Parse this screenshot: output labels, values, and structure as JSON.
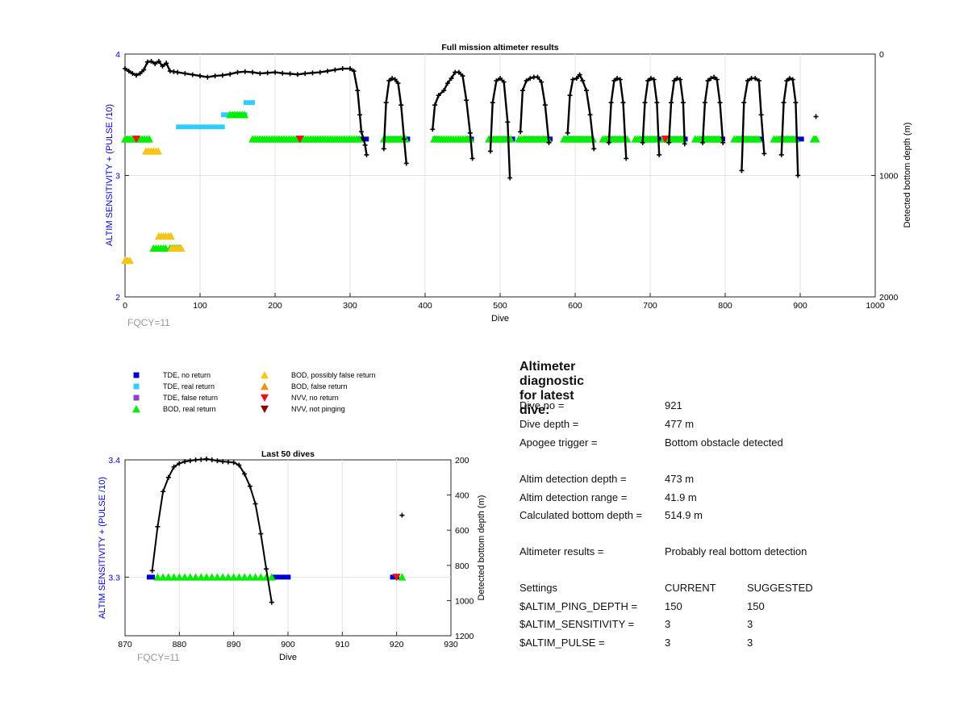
{
  "chart_data": [
    {
      "type": "scatter",
      "title": "Full mission altimeter results",
      "xlabel": "Dive",
      "ylabel": "ALTIM SENSITIVITY + (PULSE /10)",
      "y2label": "Detected bottom depth (m)",
      "xlim": [
        0,
        1000
      ],
      "ylim": [
        2,
        4
      ],
      "y2lim": [
        2000,
        0
      ],
      "y2reversed": true,
      "grid": true,
      "note": "FQCY=11",
      "xticks": [
        "0",
        "100",
        "200",
        "300",
        "400",
        "500",
        "600",
        "700",
        "800",
        "900",
        "1000"
      ],
      "yticks": [
        "2",
        "3",
        "4"
      ],
      "y2ticks": [
        "0",
        "1000",
        "2000"
      ],
      "segments": [
        {
          "series": "TDE, no return",
          "y": 3.3,
          "x": [
            [
              0,
              5
            ],
            [
              310,
              325
            ],
            [
              345,
              380
            ],
            [
              410,
              420
            ],
            [
              455,
              465
            ],
            [
              490,
              520
            ],
            [
              530,
              570
            ],
            [
              585,
              625
            ],
            [
              640,
              670
            ],
            [
              685,
              715
            ],
            [
              725,
              750
            ],
            [
              765,
              800
            ],
            [
              815,
              850
            ],
            [
              870,
              905
            ],
            [
              918,
              922
            ]
          ]
        },
        {
          "series": "TDE, real return",
          "y": 3.4,
          "x": [
            [
              68,
              133
            ]
          ]
        },
        {
          "series": "TDE, real return",
          "y": 3.5,
          "x": [
            [
              128,
              163
            ]
          ]
        },
        {
          "series": "TDE, real return",
          "y": 3.6,
          "x": [
            [
              158,
              173
            ]
          ]
        },
        {
          "series": "TDE, no return",
          "y": 2.3,
          "x": [
            [
              0,
              3
            ]
          ]
        }
      ],
      "markers": [
        {
          "series": "BOD, real return",
          "y": 3.3,
          "x": [
            [
              0,
              33
            ],
            [
              170,
              312
            ],
            [
              345,
              375
            ],
            [
              412,
              462
            ],
            [
              485,
              515
            ],
            [
              525,
              565
            ],
            [
              585,
              625
            ],
            [
              637,
              670
            ],
            [
              680,
              710
            ],
            [
              718,
              745
            ],
            [
              760,
              795
            ],
            [
              812,
              845
            ],
            [
              865,
              895
            ],
            [
              918,
              924
            ]
          ]
        },
        {
          "series": "BOD, real return",
          "y": 2.4,
          "x": [
            [
              38,
              55
            ],
            [
              60,
              73
            ]
          ]
        },
        {
          "series": "BOD, real return",
          "y": 3.5,
          "x": [
            [
              140,
              160
            ]
          ]
        },
        {
          "series": "BOD, possibly false return",
          "y": 3.2,
          "x": [
            [
              28,
              45
            ]
          ]
        },
        {
          "series": "BOD, possibly false return",
          "y": 2.5,
          "x": [
            [
              45,
              62
            ]
          ]
        },
        {
          "series": "BOD, possibly false return",
          "y": 2.4,
          "x": [
            [
              62,
              75
            ]
          ]
        },
        {
          "series": "BOD, possibly false return",
          "y": 2.3,
          "x": [
            [
              0,
              8
            ]
          ]
        },
        {
          "series": "NVV, no return",
          "y": 3.3,
          "x": [
            [
              15,
              18
            ],
            [
              233,
              236
            ],
            [
              720,
              723
            ]
          ]
        }
      ],
      "depth_series": [
        {
          "x": [
            0,
            5,
            10,
            15,
            20,
            25,
            30,
            35,
            40,
            45,
            50,
            55,
            60,
            65,
            70,
            80,
            90,
            100,
            110,
            120,
            130,
            140,
            150,
            160,
            170,
            180,
            190,
            200,
            210,
            220,
            230,
            240,
            250,
            260,
            270,
            280,
            290,
            300,
            305,
            310,
            313,
            315,
            318,
            320,
            322
          ],
          "y": [
            120,
            140,
            160,
            175,
            160,
            130,
            65,
            60,
            80,
            60,
            100,
            75,
            140,
            145,
            150,
            160,
            170,
            180,
            190,
            180,
            175,
            165,
            150,
            145,
            150,
            160,
            155,
            150,
            158,
            162,
            168,
            160,
            155,
            150,
            140,
            130,
            120,
            120,
            140,
            300,
            500,
            640,
            700,
            750,
            830
          ]
        },
        {
          "x": [
            345,
            348,
            352,
            356,
            360,
            364,
            368,
            372,
            375
          ],
          "y": [
            780,
            400,
            220,
            200,
            210,
            240,
            420,
            700,
            900
          ]
        },
        {
          "x": [
            410,
            413,
            418,
            425,
            430,
            435,
            440,
            445,
            450,
            455,
            460,
            463
          ],
          "y": [
            620,
            420,
            340,
            300,
            240,
            200,
            150,
            150,
            180,
            380,
            650,
            860
          ]
        },
        {
          "x": [
            487,
            490,
            495,
            500,
            505,
            510,
            513
          ],
          "y": [
            800,
            400,
            220,
            200,
            230,
            560,
            1020
          ]
        },
        {
          "x": [
            527,
            530,
            535,
            540,
            545,
            550,
            555,
            560,
            565
          ],
          "y": [
            640,
            300,
            220,
            200,
            190,
            190,
            230,
            420,
            730
          ]
        },
        {
          "x": [
            590,
            593,
            597,
            602,
            606,
            610,
            615,
            620,
            625
          ],
          "y": [
            650,
            340,
            210,
            200,
            170,
            220,
            300,
            500,
            780
          ]
        },
        {
          "x": [
            645,
            648,
            652,
            656,
            660,
            664,
            668
          ],
          "y": [
            730,
            400,
            220,
            200,
            210,
            400,
            860
          ]
        },
        {
          "x": [
            690,
            693,
            697,
            701,
            705,
            709,
            712
          ],
          "y": [
            730,
            400,
            220,
            200,
            210,
            400,
            830
          ]
        },
        {
          "x": [
            725,
            728,
            732,
            736,
            740,
            744,
            746
          ],
          "y": [
            730,
            400,
            220,
            200,
            210,
            400,
            740
          ]
        },
        {
          "x": [
            770,
            773,
            777,
            781,
            785,
            789,
            793,
            797
          ],
          "y": [
            730,
            400,
            220,
            200,
            190,
            210,
            400,
            730
          ]
        },
        {
          "x": [
            822,
            825,
            830,
            835,
            840,
            845,
            848,
            852
          ],
          "y": [
            960,
            400,
            220,
            200,
            200,
            220,
            500,
            820
          ]
        },
        {
          "x": [
            875,
            878,
            882,
            886,
            890,
            894,
            897
          ],
          "y": [
            830,
            400,
            220,
            200,
            210,
            400,
            1000
          ]
        },
        {
          "x": [
            921
          ],
          "y": [
            514.9
          ]
        }
      ]
    },
    {
      "type": "scatter",
      "title": "Last 50 dives",
      "xlabel": "Dive",
      "ylabel": "ALTIM SENSITIVITY + (PULSE /10)",
      "y2label": "Detected bottom depth (m)",
      "xlim": [
        870,
        930
      ],
      "ylim": [
        3.25,
        3.4
      ],
      "y2lim": [
        1200,
        200
      ],
      "y2reversed": true,
      "grid": true,
      "note": "FQCY=11",
      "xticks": [
        "870",
        "880",
        "890",
        "900",
        "910",
        "920",
        "930"
      ],
      "yticks": [
        "3.3",
        "3.4"
      ],
      "y2ticks": [
        "200",
        "400",
        "600",
        "800",
        "1000",
        "1200"
      ],
      "segments": [
        {
          "series": "TDE, no return",
          "y": 3.3,
          "x": [
            [
              874,
              875.5
            ],
            [
              897,
              900.5
            ],
            [
              918.8,
              920.5
            ]
          ]
        }
      ],
      "markers": [
        {
          "series": "BOD, real return",
          "y": 3.3,
          "x": [
            876,
            877,
            878,
            879,
            880,
            881,
            882,
            883,
            884,
            885,
            886,
            887,
            888,
            889,
            890,
            891,
            892,
            893,
            894,
            895,
            896,
            897,
            921
          ]
        },
        {
          "series": "NVV, no return",
          "y": 3.3,
          "x": [
            920
          ]
        }
      ],
      "depth_series": [
        {
          "x": [
            875,
            876,
            877,
            878,
            879,
            880,
            881,
            882,
            883,
            884,
            885,
            886,
            887,
            888,
            889,
            890,
            891,
            892,
            893,
            894,
            895,
            896,
            897
          ],
          "y": [
            830,
            580,
            380,
            300,
            240,
            220,
            210,
            205,
            200,
            198,
            195,
            200,
            205,
            210,
            212,
            215,
            230,
            280,
            350,
            450,
            620,
            820,
            1010
          ]
        },
        {
          "x": [
            921
          ],
          "y": [
            514.9
          ]
        }
      ]
    }
  ],
  "legend": [
    {
      "label": "TDE, no return",
      "color": "#0000cc",
      "marker": "square"
    },
    {
      "label": "TDE, real return",
      "color": "#33ccff",
      "marker": "square"
    },
    {
      "label": "TDE, false return",
      "color": "#8844cc",
      "marker": "square"
    },
    {
      "label": "BOD, real return",
      "color": "#00ee00",
      "marker": "triangle-up"
    },
    {
      "label": "BOD, possibly false return",
      "color": "#f5c518",
      "marker": "triangle-up"
    },
    {
      "label": "BOD, false return",
      "color": "#f09010",
      "marker": "triangle-up"
    },
    {
      "label": "NVV, no return",
      "color": "#ee1111",
      "marker": "triangle-down"
    },
    {
      "label": "NVV, not pinging",
      "color": "#8b0000",
      "marker": "triangle-down"
    }
  ],
  "diagnostic": {
    "title": "Altimeter diagnostic for latest dive:",
    "rows": [
      {
        "label": "Dive no =",
        "value": "921"
      },
      {
        "label": "Dive depth =",
        "value": "477 m"
      },
      {
        "label": "Apogee trigger =",
        "value": "Bottom obstacle detected"
      },
      {
        "label": "Altim detection depth =",
        "value": "473 m"
      },
      {
        "label": "Altim detection range =",
        "value": "41.9 m"
      },
      {
        "label": "Calculated bottom depth =",
        "value": "514.9 m"
      },
      {
        "label": "Altimeter results =",
        "value": "Probably real bottom detection"
      }
    ],
    "settings_header": {
      "label": "Settings",
      "current": "CURRENT",
      "suggested": "SUGGESTED"
    },
    "settings": [
      {
        "label": "$ALTIM_PING_DEPTH =",
        "current": "150",
        "suggested": "150"
      },
      {
        "label": "$ALTIM_SENSITIVITY =",
        "current": "3",
        "suggested": "3"
      },
      {
        "label": "$ALTIM_PULSE =",
        "current": "3",
        "suggested": "3"
      }
    ]
  }
}
